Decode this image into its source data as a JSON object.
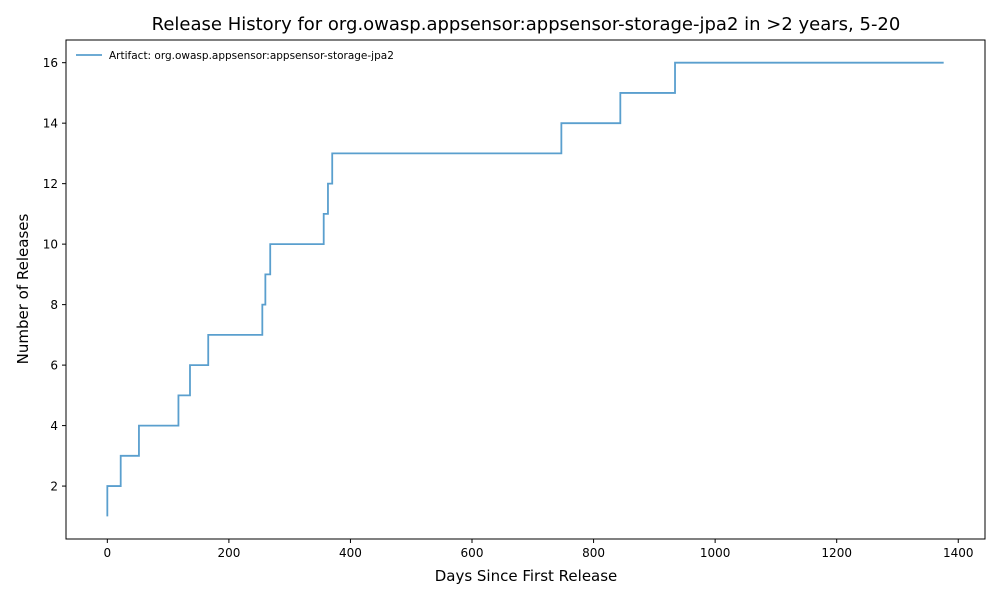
{
  "chart_data": {
    "type": "line",
    "step": "post",
    "title": "Release History for org.owasp.appsensor:appsensor-storage-jpa2 in >2 years, 5-20",
    "xlabel": "Days Since First Release",
    "ylabel": "Number of Releases",
    "xlim": [
      -68,
      1444
    ],
    "ylim": [
      0.25,
      16.75
    ],
    "xticks": [
      0,
      200,
      400,
      600,
      800,
      1000,
      1200,
      1400
    ],
    "yticks": [
      2,
      4,
      6,
      8,
      10,
      12,
      14,
      16
    ],
    "grid": false,
    "legend_position": "upper-left",
    "series": [
      {
        "name": "Artifact: org.owasp.appsensor:appsensor-storage-jpa2",
        "color": "#5a9fce",
        "x": [
          0,
          0,
          22,
          52,
          117,
          136,
          166,
          255,
          260,
          268,
          356,
          363,
          370,
          747,
          844,
          934,
          1376
        ],
        "y": [
          1,
          2,
          3,
          4,
          5,
          6,
          7,
          8,
          9,
          10,
          11,
          12,
          13,
          14,
          15,
          16,
          16
        ]
      }
    ]
  }
}
